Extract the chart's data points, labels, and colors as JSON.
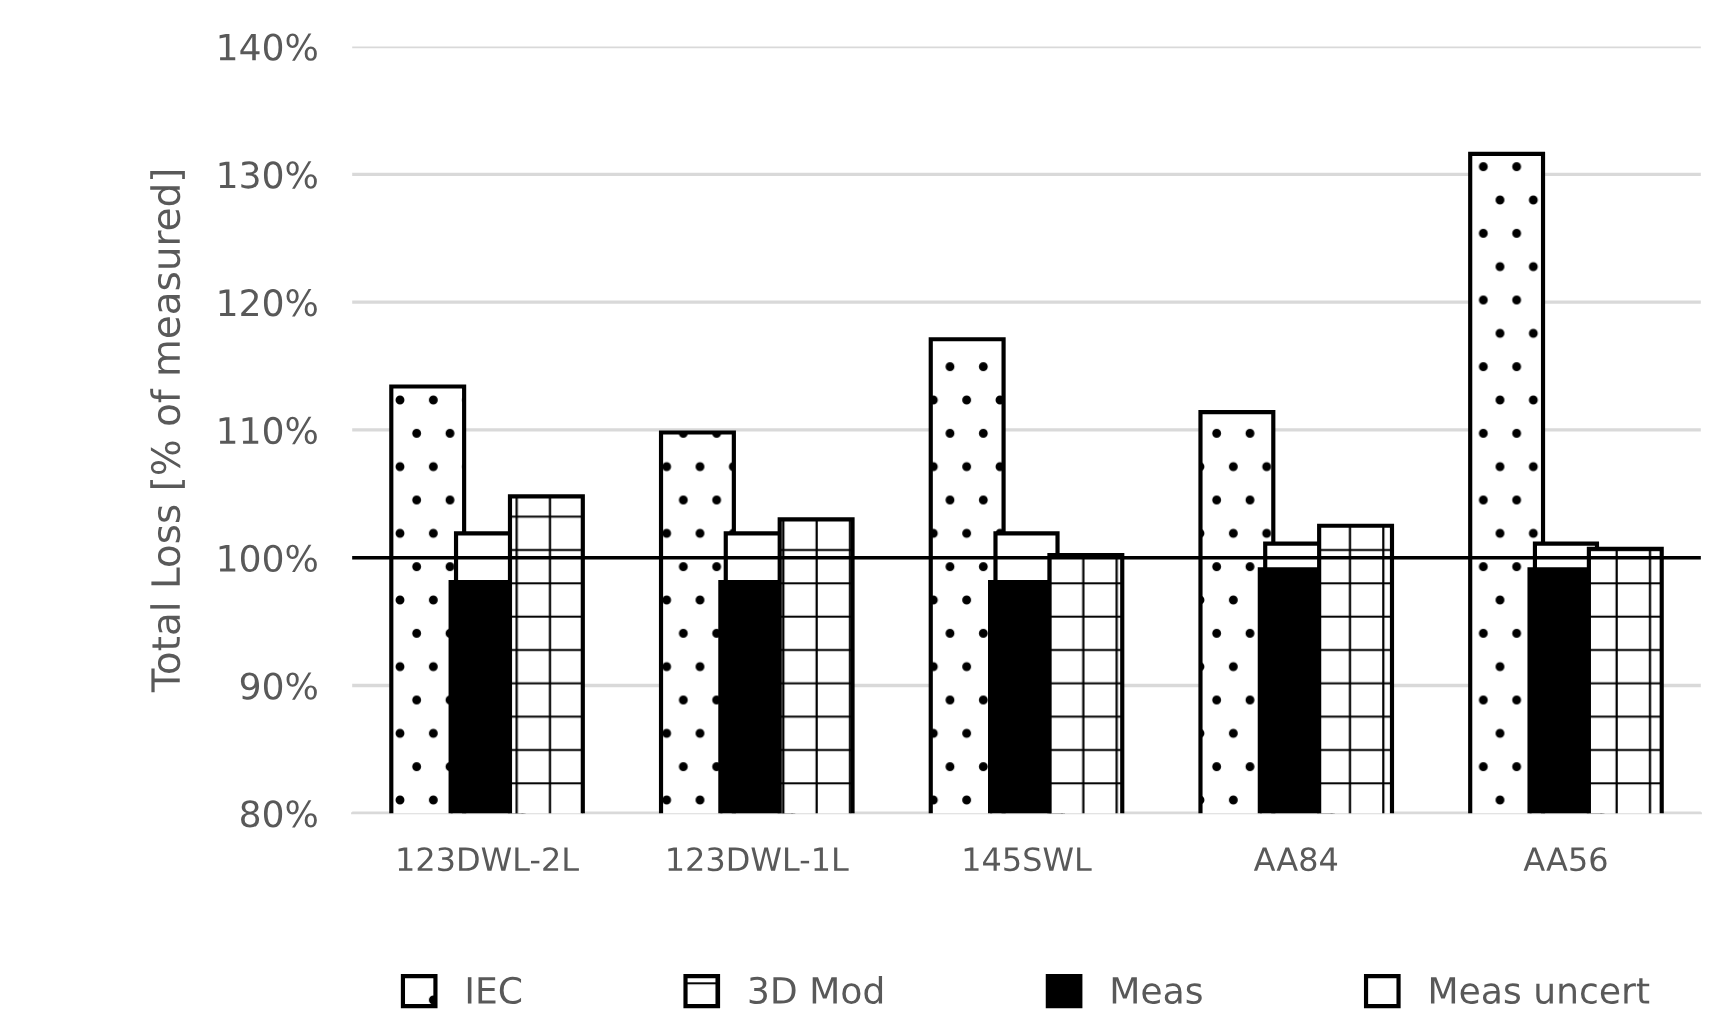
{
  "chart_data": {
    "type": "bar",
    "ylabel": "Total Loss [% of measured]",
    "categories": [
      "123DWL-2L",
      "123DWL-1L",
      "145SWL",
      "AA84",
      "AA56"
    ],
    "series": [
      {
        "name": "IEC",
        "color": "#000000",
        "values": [
          113.4,
          109.8,
          117.1,
          111.4,
          131.6
        ]
      },
      {
        "name": "3D Mod",
        "color": "#000000",
        "values": [
          104.8,
          103.0,
          100.2,
          102.5,
          100.7
        ]
      },
      {
        "name": "Meas",
        "color": "#000000",
        "values": [
          98.1,
          98.1,
          98.1,
          99.1,
          99.1
        ]
      },
      {
        "name": "Meas uncert",
        "color": "#ffffff",
        "base": [
          98.1,
          98.1,
          98.1,
          99.1,
          99.1
        ],
        "values": [
          3.8,
          3.8,
          3.8,
          2.0,
          2.0
        ]
      }
    ],
    "ylim": [
      80,
      140
    ],
    "yticks": [
      {
        "value": 80,
        "label": "80%"
      },
      {
        "value": 90,
        "label": "90%"
      },
      {
        "value": 100,
        "label": "100%"
      },
      {
        "value": 110,
        "label": "110%"
      },
      {
        "value": 120,
        "label": "120%"
      },
      {
        "value": 130,
        "label": "130%"
      },
      {
        "value": 140,
        "label": "140%"
      }
    ],
    "ref_lines": [
      {
        "axis": "y",
        "value": 100,
        "color": "#000000"
      }
    ],
    "grid": "y",
    "legend": "bottom"
  }
}
